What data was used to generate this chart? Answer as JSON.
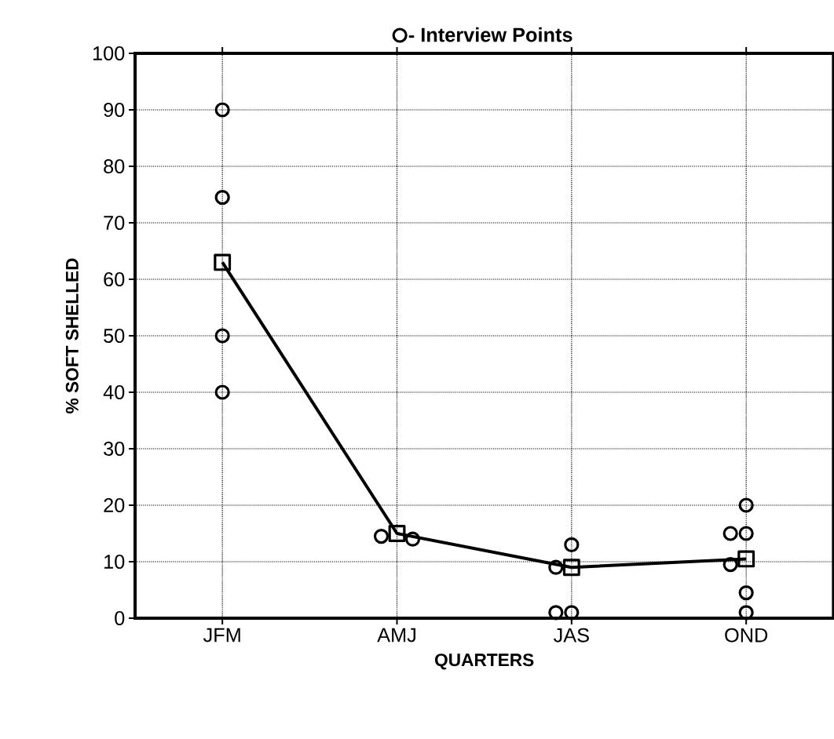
{
  "chart_data": {
    "type": "line",
    "xlabel": "QUARTERS",
    "ylabel": "% SOFT SHELLED",
    "categories": [
      "JFM",
      "AMJ",
      "JAS",
      "OND"
    ],
    "ylim": [
      0,
      100
    ],
    "yticks": [
      0,
      10,
      20,
      30,
      40,
      50,
      60,
      70,
      80,
      90,
      100
    ],
    "grid": true,
    "legend": "top",
    "line_style": "solid",
    "series": [
      {
        "type": "scatter",
        "name": "- Interview Points",
        "color": "#000000",
        "marker": "circle",
        "x": [
          "JFM",
          "JFM",
          "JFM",
          "JFM",
          "AMJ",
          "AMJ",
          "JAS",
          "JAS",
          "JAS",
          "JAS",
          "OND",
          "OND",
          "OND",
          "OND",
          "OND",
          "OND"
        ],
        "values": [
          90,
          74.5,
          50,
          40,
          14.5,
          14,
          9,
          13,
          1,
          1,
          20,
          15,
          15,
          9.5,
          4.5,
          1
        ]
      },
      {
        "color": "#000000",
        "marker": "square",
        "values": [
          63,
          15,
          9,
          10.5
        ]
      }
    ]
  }
}
